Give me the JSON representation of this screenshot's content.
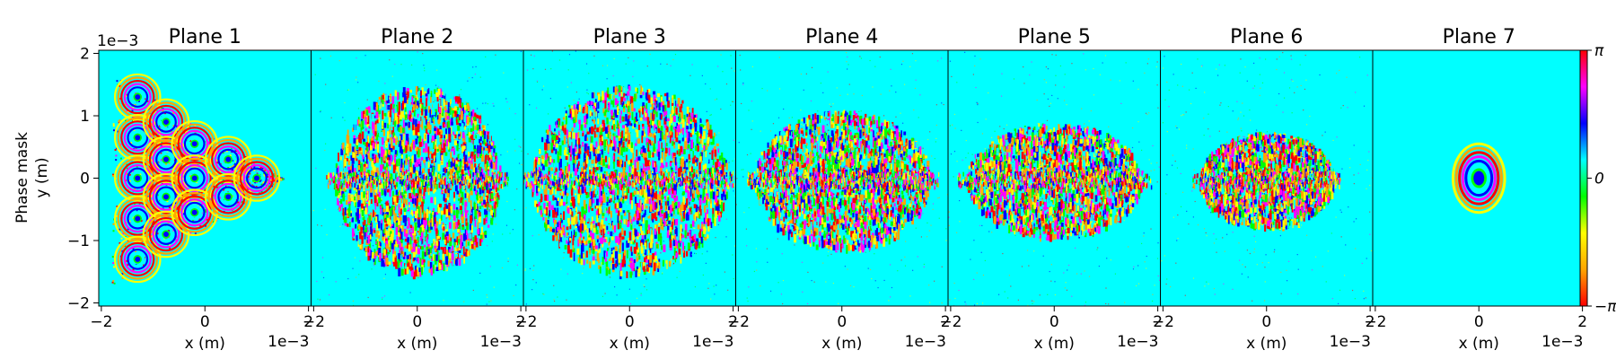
{
  "chart_data": {
    "type": "heatmap",
    "ylabel_lines": [
      "Phase mask",
      "y (m)"
    ],
    "y_exponent": "1e−3",
    "yticks": [
      {
        "value": 2,
        "label": "2"
      },
      {
        "value": 1,
        "label": "1"
      },
      {
        "value": 0,
        "label": "0"
      },
      {
        "value": -1,
        "label": "−1"
      },
      {
        "value": -2,
        "label": "−2"
      }
    ],
    "ylim": [
      -0.00205,
      0.00205
    ],
    "xlim": [
      -0.00205,
      0.00205
    ],
    "colormap": [
      "#ff0000",
      "#ffa500",
      "#ffff00",
      "#00ff00",
      "#00ffff",
      "#0000ff",
      "#ff00ff",
      "#ff0000"
    ],
    "background_color": "#00ffff",
    "colorbar": {
      "ticks": [
        {
          "value": 3.14159,
          "label": "π"
        },
        {
          "value": 0,
          "label": "0"
        },
        {
          "value": -3.14159,
          "label": "−π"
        }
      ],
      "range": [
        -3.14159,
        3.14159
      ]
    },
    "panels": [
      {
        "title": "Plane 1",
        "xlabel": "x (m)",
        "x_exponent": "1e−3",
        "xticks": [
          {
            "value": -2,
            "label": "−2"
          },
          {
            "value": 0,
            "label": "0"
          },
          {
            "value": 2,
            "label": "2"
          }
        ],
        "pattern": "triangle"
      },
      {
        "title": "Plane 2",
        "xlabel": "x (m)",
        "x_exponent": "1e−3",
        "xticks": [
          {
            "value": -2,
            "label": "−2"
          },
          {
            "value": 0,
            "label": "0"
          },
          {
            "value": 2,
            "label": "2"
          }
        ],
        "pattern": "scatter",
        "extent_x": 0.0016,
        "extent_y": 0.0015
      },
      {
        "title": "Plane 3",
        "xlabel": "x (m)",
        "x_exponent": "1e−3",
        "xticks": [
          {
            "value": -2,
            "label": "−2"
          },
          {
            "value": 0,
            "label": "0"
          },
          {
            "value": 2,
            "label": "2"
          }
        ],
        "pattern": "scatter",
        "extent_x": 0.0019,
        "extent_y": 0.0015
      },
      {
        "title": "Plane 4",
        "xlabel": "x (m)",
        "x_exponent": "1e−3",
        "xticks": [
          {
            "value": -2,
            "label": "−2"
          },
          {
            "value": 0,
            "label": "0"
          },
          {
            "value": 2,
            "label": "2"
          }
        ],
        "pattern": "scatter",
        "extent_x": 0.0017,
        "extent_y": 0.0011
      },
      {
        "title": "Plane 5",
        "xlabel": "x (m)",
        "x_exponent": "1e−3",
        "xticks": [
          {
            "value": -2,
            "label": "−2"
          },
          {
            "value": 0,
            "label": "0"
          },
          {
            "value": 2,
            "label": "2"
          }
        ],
        "pattern": "scatter",
        "extent_x": 0.0017,
        "extent_y": 0.0009
      },
      {
        "title": "Plane 6",
        "xlabel": "x (m)",
        "x_exponent": "1e−3",
        "xticks": [
          {
            "value": -2,
            "label": "−2"
          },
          {
            "value": 0,
            "label": "0"
          },
          {
            "value": 2,
            "label": "2"
          }
        ],
        "pattern": "scatter",
        "extent_x": 0.0013,
        "extent_y": 0.00075
      },
      {
        "title": "Plane 7",
        "xlabel": "x (m)",
        "x_exponent": "1e−3",
        "xticks": [
          {
            "value": -2,
            "label": "−2"
          },
          {
            "value": 0,
            "label": "0"
          },
          {
            "value": 2,
            "label": "2"
          }
        ],
        "pattern": "disk",
        "extent_x": 0.0005,
        "extent_y": 0.00055
      }
    ]
  }
}
